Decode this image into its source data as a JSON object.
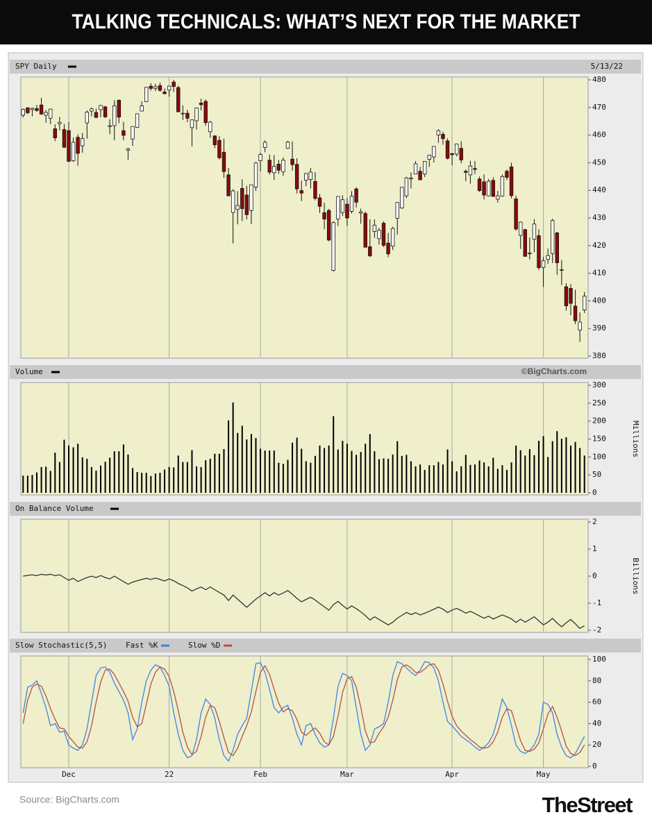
{
  "header": {
    "title": "TALKING TECHNICALS: WHAT’S NEXT FOR THE MARKET"
  },
  "chart_data": [
    {
      "type": "candlestick",
      "title": "SPY Daily",
      "date": "5/13/22",
      "up_color": "#ffffff",
      "down_color": "#8b0a0a",
      "open": [
        467.2,
        469.9,
        469.2,
        469.6,
        470.9,
        467.2,
        466.1,
        462.3,
        464.1,
        462.0,
        461.6,
        450.7,
        459.2,
        456.1,
        464.4,
        468.7,
        468.2,
        469.2,
        470.2,
        463.1,
        463.4,
        472.6,
        461.6,
        454.5,
        458.6,
        462.8,
        468.7,
        472.1,
        477.7,
        476.9,
        477.9,
        475.6,
        476.3,
        479.2,
        477.2,
        467.9,
        467.9,
        462.7,
        465.2,
        471.6,
        472.2,
        461.2,
        459.7,
        458.1,
        453.8,
        445.6,
        432.0,
        433.1,
        440.7,
        438.3,
        432.7,
        441.2,
        450.7,
        455.5,
        450.9,
        446.4,
        449.5,
        446.7,
        455.2,
        451.3,
        449.4,
        439.9,
        443.7,
        443.9,
        443.2,
        437.3,
        431.9,
        432.7,
        411.0,
        429.6,
        432.0,
        435.0,
        432.4,
        440.5,
        431.8,
        431.6,
        419.6,
        425.1,
        422.5,
        428.1,
        420.9,
        419.8,
        429.9,
        433.6,
        438.0,
        444.3,
        445.9,
        446.9,
        445.9,
        451.2,
        452.1,
        460.0,
        460.3,
        457.9,
        453.3,
        453.1,
        455.2,
        446.9,
        445.6,
        447.9,
        444.1,
        443.1,
        438.0,
        443.6,
        436.8,
        437.9,
        446.9,
        448.5,
        436.9,
        423.7,
        425.8,
        417.2,
        422.3,
        423.6,
        412.1,
        415.0,
        417.1,
        424.6,
        411.1,
        405.1,
        404.5,
        398.1,
        389.4,
        396.7
      ],
      "high": [
        469.6,
        470.0,
        470.0,
        470.9,
        473.5,
        469.1,
        469.6,
        463.9,
        466.6,
        464.0,
        464.7,
        459.1,
        460.3,
        460.8,
        468.9,
        470.0,
        469.6,
        470.9,
        470.6,
        465.7,
        472.6,
        472.9,
        464.8,
        455.4,
        463.2,
        467.8,
        472.2,
        477.3,
        478.8,
        478.6,
        479.0,
        476.9,
        477.9,
        479.98,
        477.9,
        470.8,
        469.2,
        465.7,
        469.9,
        473.2,
        472.9,
        465.1,
        459.96,
        459.6,
        458.7,
        448.1,
        440.4,
        439.7,
        444.0,
        441.6,
        442.0,
        450.3,
        453.6,
        458.1,
        452.97,
        452.8,
        450.99,
        451.9,
        457.9,
        457.7,
        451.6,
        443.5,
        446.3,
        448.1,
        446.6,
        438.7,
        435.5,
        433.3,
        428.8,
        437.8,
        438.2,
        437.2,
        439.7,
        441.1,
        433.4,
        432.3,
        429.5,
        429.5,
        426.4,
        428.8,
        424.6,
        426.8,
        435.7,
        441.1,
        444.9,
        446.5,
        450.6,
        448.5,
        450.6,
        452.9,
        455.9,
        462.1,
        461.2,
        458.8,
        453.5,
        456.9,
        457.8,
        447.6,
        450.7,
        450.6,
        445.0,
        445.8,
        444.1,
        444.7,
        439.8,
        445.8,
        447.6,
        450.0,
        438.1,
        428.7,
        426.0,
        422.9,
        429.6,
        425.9,
        415.9,
        418.9,
        429.7,
        425.0,
        414.8,
        406.4,
        406.1,
        404.0,
        395.8,
        403.2
      ],
      "low": [
        466.4,
        467.6,
        466.8,
        468.5,
        467.4,
        464.5,
        464.0,
        457.8,
        461.7,
        455.3,
        450.3,
        450.3,
        448.9,
        453.6,
        458.7,
        466.8,
        466.1,
        466.5,
        466.2,
        460.3,
        458.1,
        464.3,
        458.1,
        451.1,
        456.1,
        462.6,
        468.6,
        472.0,
        476.1,
        475.9,
        475.7,
        474.7,
        473.9,
        475.6,
        468.3,
        465.4,
        464.7,
        455.9,
        462.0,
        468.9,
        463.4,
        459.0,
        455.3,
        451.2,
        444.5,
        437.9,
        420.8,
        427.7,
        428.9,
        429.5,
        427.8,
        439.8,
        446.9,
        453.8,
        445.7,
        443.8,
        445.9,
        445.2,
        455.0,
        447.2,
        438.9,
        436.1,
        441.5,
        440.7,
        436.4,
        431.8,
        425.9,
        421.6,
        410.6,
        427.1,
        430.7,
        427.1,
        431.6,
        433.8,
        427.9,
        419.4,
        415.8,
        422.8,
        420.4,
        419.5,
        415.8,
        418.4,
        424.0,
        433.3,
        437.2,
        440.7,
        445.9,
        443.7,
        444.8,
        448.5,
        450.1,
        457.2,
        456.5,
        451.2,
        449.1,
        452.3,
        449.8,
        443.3,
        442.4,
        445.9,
        439.4,
        436.7,
        437.8,
        437.7,
        435.6,
        437.7,
        443.7,
        437.1,
        425.4,
        418.8,
        416.1,
        415.0,
        417.6,
        411.2,
        405.0,
        413.4,
        413.7,
        409.4,
        405.7,
        396.5,
        394.8,
        391.6,
        385.2,
        395.6
      ],
      "close": [
        469.3,
        468.1,
        469.7,
        468.9,
        467.6,
        468.2,
        469.4,
        459.0,
        464.6,
        455.6,
        450.5,
        457.4,
        453.4,
        458.8,
        468.3,
        469.5,
        466.4,
        470.7,
        466.6,
        463.4,
        470.6,
        466.5,
        459.9,
        455.0,
        463.1,
        467.7,
        470.6,
        477.3,
        476.9,
        477.5,
        476.2,
        475.0,
        477.7,
        477.6,
        468.4,
        467.9,
        466.1,
        465.5,
        469.8,
        471.0,
        464.5,
        464.7,
        456.5,
        451.8,
        446.8,
        438.0,
        439.8,
        434.5,
        433.4,
        431.2,
        442.0,
        449.9,
        453.0,
        457.4,
        446.6,
        448.7,
        447.3,
        450.9,
        457.5,
        449.3,
        440.5,
        439.0,
        446.1,
        446.6,
        437.1,
        434.2,
        429.6,
        422.0,
        428.3,
        437.8,
        436.6,
        430.0,
        437.9,
        435.7,
        432.2,
        419.4,
        416.3,
        427.4,
        425.5,
        420.1,
        417.0,
        426.2,
        435.6,
        441.1,
        444.5,
        444.4,
        449.6,
        443.8,
        450.5,
        452.7,
        455.9,
        461.6,
        458.7,
        451.6,
        452.9,
        456.8,
        451.0,
        446.5,
        448.8,
        447.6,
        439.9,
        438.3,
        443.3,
        437.8,
        438.0,
        445.0,
        444.7,
        438.1,
        426.0,
        428.5,
        416.1,
        417.3,
        427.8,
        412.0,
        414.5,
        416.4,
        429.1,
        413.8,
        411.3,
        398.2,
        399.1,
        392.8,
        392.3,
        401.7
      ],
      "ylim": [
        380,
        480
      ],
      "yticks": [
        380,
        390,
        400,
        410,
        420,
        430,
        440,
        450,
        460,
        470,
        480
      ]
    },
    {
      "type": "bar",
      "title": "Volume",
      "credit": "©BigCharts.com",
      "y_label": "Millions",
      "color": "#000000",
      "values": [
        48,
        48,
        50,
        57,
        72,
        73,
        61,
        112,
        86,
        148,
        132,
        127,
        137,
        99,
        95,
        72,
        62,
        76,
        87,
        98,
        116,
        116,
        135,
        107,
        69,
        58,
        56,
        56,
        47,
        54,
        56,
        65,
        72,
        71,
        104,
        86,
        86,
        119,
        74,
        72,
        91,
        95,
        109,
        109,
        122,
        202,
        252,
        167,
        187,
        149,
        164,
        153,
        123,
        118,
        118,
        118,
        84,
        81,
        92,
        140,
        154,
        123,
        88,
        84,
        103,
        132,
        125,
        132,
        214,
        121,
        145,
        137,
        117,
        106,
        114,
        137,
        164,
        116,
        94,
        96,
        95,
        107,
        144,
        103,
        106,
        88,
        74,
        79,
        64,
        77,
        77,
        86,
        79,
        121,
        88,
        60,
        74,
        106,
        78,
        79,
        90,
        85,
        74,
        98,
        67,
        77,
        64,
        85,
        132,
        119,
        104,
        122,
        105,
        145,
        158,
        100,
        144,
        172,
        151,
        155,
        132,
        142,
        125,
        104
      ],
      "ylim": [
        0,
        300
      ],
      "yticks": [
        0,
        50,
        100,
        150,
        200,
        250,
        300
      ]
    },
    {
      "type": "line",
      "title": "On Balance Volume",
      "y_label": "Billions",
      "color": "#333333",
      "values": [
        0,
        0.03,
        0.05,
        0.02,
        0.07,
        0.04,
        0.07,
        0.02,
        0.05,
        -0.05,
        -0.15,
        -0.08,
        -0.2,
        -0.12,
        -0.05,
        0,
        -0.05,
        0.02,
        -0.05,
        -0.1,
        0,
        -0.1,
        -0.2,
        -0.3,
        -0.22,
        -0.17,
        -0.12,
        -0.08,
        -0.12,
        -0.07,
        -0.12,
        -0.18,
        -0.1,
        -0.17,
        -0.27,
        -0.35,
        -0.43,
        -0.55,
        -0.47,
        -0.4,
        -0.5,
        -0.4,
        -0.5,
        -0.6,
        -0.7,
        -0.9,
        -0.7,
        -0.85,
        -1.0,
        -1.15,
        -1.0,
        -0.85,
        -0.73,
        -0.61,
        -0.73,
        -0.61,
        -0.7,
        -0.62,
        -0.53,
        -0.67,
        -0.82,
        -0.95,
        -0.86,
        -0.78,
        -0.88,
        -1.01,
        -1.13,
        -1.26,
        -1.05,
        -0.93,
        -1.08,
        -1.21,
        -1.1,
        -1.2,
        -1.32,
        -1.46,
        -1.62,
        -1.5,
        -1.6,
        -1.7,
        -1.8,
        -1.7,
        -1.55,
        -1.45,
        -1.34,
        -1.42,
        -1.35,
        -1.43,
        -1.37,
        -1.3,
        -1.22,
        -1.14,
        -1.22,
        -1.34,
        -1.25,
        -1.19,
        -1.27,
        -1.37,
        -1.3,
        -1.38,
        -1.47,
        -1.55,
        -1.48,
        -1.58,
        -1.51,
        -1.43,
        -1.5,
        -1.58,
        -1.71,
        -1.59,
        -1.7,
        -1.6,
        -1.5,
        -1.65,
        -1.8,
        -1.7,
        -1.56,
        -1.73,
        -1.87,
        -1.72,
        -1.6,
        -1.76,
        -1.93,
        -1.83
      ],
      "ylim": [
        -2,
        2
      ],
      "yticks": [
        -2,
        -1,
        0,
        1,
        2
      ]
    },
    {
      "type": "line",
      "title": "Slow Stochastic(5,5)",
      "series": [
        {
          "name": "Fast %K",
          "color": "#3d83e6",
          "values": [
            50,
            74,
            76,
            80,
            68,
            55,
            38,
            40,
            32,
            33,
            20,
            17,
            15,
            20,
            35,
            60,
            85,
            92,
            93,
            88,
            78,
            70,
            62,
            50,
            25,
            35,
            60,
            80,
            90,
            95,
            93,
            85,
            75,
            50,
            30,
            15,
            8,
            10,
            25,
            50,
            63,
            58,
            45,
            25,
            10,
            5,
            15,
            30,
            38,
            45,
            70,
            96,
            97,
            88,
            72,
            55,
            50,
            55,
            57,
            45,
            30,
            20,
            38,
            40,
            30,
            22,
            18,
            20,
            45,
            75,
            87,
            85,
            80,
            55,
            30,
            15,
            20,
            35,
            37,
            40,
            60,
            85,
            98,
            96,
            92,
            88,
            85,
            90,
            98,
            97,
            92,
            80,
            60,
            42,
            38,
            33,
            28,
            25,
            22,
            18,
            15,
            18,
            22,
            30,
            45,
            63,
            55,
            38,
            20,
            14,
            12,
            15,
            20,
            30,
            60,
            58,
            50,
            30,
            18,
            10,
            8,
            12,
            20,
            28
          ]
        },
        {
          "name": "Slow %D",
          "color": "#b5503f",
          "values": [
            40,
            62,
            74,
            77,
            75,
            66,
            54,
            44,
            36,
            35,
            28,
            23,
            18,
            17,
            23,
            38,
            60,
            79,
            90,
            91,
            86,
            78,
            70,
            61,
            46,
            37,
            40,
            58,
            77,
            88,
            93,
            91,
            84,
            70,
            52,
            32,
            18,
            11,
            14,
            28,
            46,
            57,
            55,
            42,
            27,
            13,
            10,
            17,
            28,
            38,
            51,
            70,
            88,
            94,
            86,
            72,
            59,
            51,
            54,
            52,
            44,
            32,
            29,
            33,
            36,
            31,
            23,
            20,
            28,
            47,
            69,
            82,
            84,
            74,
            55,
            33,
            22,
            23,
            31,
            37,
            46,
            62,
            81,
            93,
            95,
            92,
            88,
            88,
            91,
            95,
            96,
            90,
            77,
            61,
            47,
            38,
            33,
            29,
            25,
            22,
            18,
            17,
            18,
            23,
            32,
            46,
            54,
            52,
            38,
            24,
            15,
            14,
            16,
            22,
            35,
            49,
            56,
            46,
            33,
            19,
            12,
            10,
            13,
            20
          ]
        }
      ],
      "categories": [
        null,
        null,
        null,
        null,
        null,
        null,
        null,
        null,
        null,
        null,
        "Dec",
        null,
        null,
        null,
        null,
        null,
        null,
        null,
        null,
        null,
        null,
        null,
        null,
        null,
        null,
        null,
        null,
        null,
        null,
        null,
        null,
        null,
        "22",
        null,
        null,
        null,
        null,
        null,
        null,
        null,
        null,
        null,
        null,
        null,
        null,
        null,
        null,
        null,
        null,
        null,
        null,
        null,
        "Feb",
        null,
        null,
        null,
        null,
        null,
        null,
        null,
        null,
        null,
        null,
        null,
        null,
        null,
        null,
        null,
        null,
        null,
        null,
        "Mar",
        null,
        null,
        null,
        null,
        null,
        null,
        null,
        null,
        null,
        null,
        null,
        null,
        null,
        null,
        null,
        null,
        null,
        null,
        null,
        null,
        null,
        null,
        "Apr",
        null,
        null,
        null,
        null,
        null,
        null,
        null,
        null,
        null,
        null,
        null,
        null,
        null,
        null,
        null,
        null,
        null,
        null,
        null,
        "May",
        null,
        null,
        null,
        null,
        null,
        null,
        null,
        null,
        null
      ],
      "ylim": [
        0,
        100
      ],
      "yticks": [
        0,
        20,
        40,
        60,
        80,
        100
      ]
    }
  ],
  "footer": {
    "source": "Source: BigCharts.com",
    "logo": "TheStreet"
  }
}
